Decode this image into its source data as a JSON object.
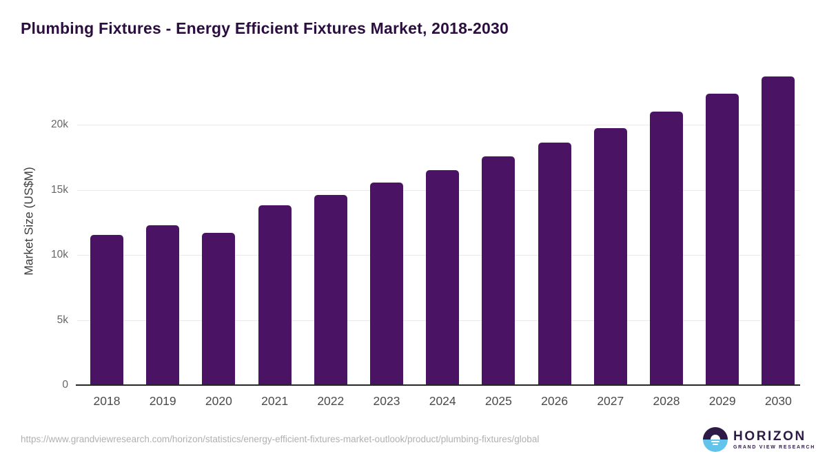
{
  "chart_data": {
    "type": "bar",
    "title": "Plumbing Fixtures - Energy Efficient Fixtures Market, 2018-2030",
    "categories": [
      "2018",
      "2019",
      "2020",
      "2021",
      "2022",
      "2023",
      "2024",
      "2025",
      "2026",
      "2027",
      "2028",
      "2029",
      "2030"
    ],
    "values": [
      11550,
      12270,
      11720,
      13810,
      14630,
      15540,
      16540,
      17570,
      18630,
      19770,
      21030,
      22370,
      23710
    ],
    "xlabel": "",
    "ylabel": "Market Size (US$M)",
    "ylim": [
      0,
      24300
    ],
    "y_ticks": [
      {
        "label": "0",
        "value": 0
      },
      {
        "label": "5k",
        "value": 5000
      },
      {
        "label": "10k",
        "value": 10000
      },
      {
        "label": "15k",
        "value": 15000
      },
      {
        "label": "20k",
        "value": 20000
      }
    ],
    "grid": "horizontal",
    "legend": "none",
    "bar_color": "#4a1363"
  },
  "footer": {
    "source_url": "https://www.grandviewresearch.com/horizon/statistics/energy-efficient-fixtures-market-outlook/product/plumbing-fixtures/global",
    "logo": {
      "brand": "HORIZON",
      "tagline": "GRAND VIEW RESEARCH"
    }
  },
  "colors": {
    "bar": "#4a1363",
    "title": "#2b0e3f",
    "gridline": "#e9e9e9",
    "axis_line": "#262626",
    "x_tick": "#4a4a4a",
    "y_tick": "#666666",
    "axis_title": "#3f3f3f",
    "url_text": "#b0b0b0",
    "logo_purple": "#2e1a47",
    "logo_blue": "#62c4ea"
  }
}
